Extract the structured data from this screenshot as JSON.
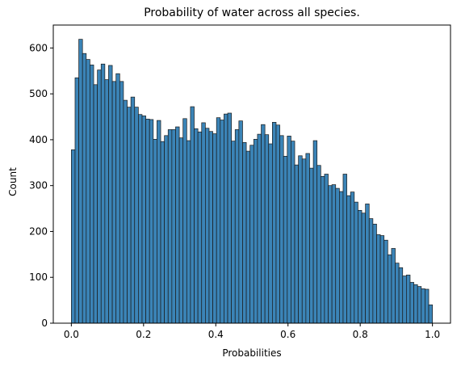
{
  "chart_data": {
    "type": "bar",
    "subtype": "histogram",
    "title": "Probability of water across all species.",
    "xlabel": "Probabilities",
    "ylabel": "Count",
    "xlim": [
      -0.05,
      1.05
    ],
    "ylim": [
      0,
      650
    ],
    "xticks": [
      0.0,
      0.2,
      0.4,
      0.6,
      0.8,
      1.0
    ],
    "xtick_labels": [
      "0.0",
      "0.2",
      "0.4",
      "0.6",
      "0.8",
      "1.0"
    ],
    "yticks": [
      0,
      100,
      200,
      300,
      400,
      500,
      600
    ],
    "ytick_labels": [
      "0",
      "100",
      "200",
      "300",
      "400",
      "500",
      "600"
    ],
    "bin_start": 0.0,
    "bin_end": 1.0,
    "grid": false,
    "legend": "none",
    "bar_color": "#3b84b7",
    "edge_color": "#1a1a1a",
    "values": [
      378,
      535,
      619,
      588,
      575,
      563,
      520,
      552,
      565,
      531,
      562,
      527,
      544,
      527,
      486,
      471,
      493,
      471,
      455,
      452,
      445,
      444,
      401,
      442,
      396,
      409,
      422,
      422,
      428,
      404,
      446,
      398,
      472,
      424,
      417,
      437,
      425,
      418,
      413,
      448,
      443,
      456,
      458,
      397,
      422,
      441,
      394,
      375,
      388,
      401,
      412,
      433,
      411,
      391,
      438,
      432,
      409,
      364,
      408,
      397,
      345,
      365,
      358,
      370,
      338,
      398,
      344,
      320,
      325,
      300,
      302,
      294,
      287,
      325,
      278,
      286,
      264,
      246,
      240,
      260,
      228,
      216,
      193,
      191,
      181,
      149,
      163,
      131,
      121,
      103,
      105,
      89,
      84,
      80,
      75,
      74,
      40
    ]
  }
}
